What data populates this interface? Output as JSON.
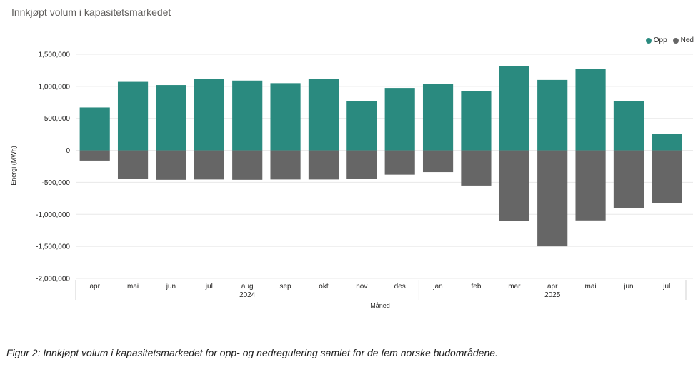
{
  "title": "Innkjøpt volum i kapasitetsmarkedet",
  "caption": "Figur 2: Innkjøpt volum i kapasitetsmarkedet for opp- og nedregulering samlet for de fem norske budområdene.",
  "colors": {
    "opp": "#2a8a7f",
    "ned": "#666666",
    "grid": "#e8e8e8"
  },
  "chart_data": {
    "type": "bar",
    "title": "Innkjøpt volum i kapasitetsmarkedet",
    "xlabel": "Måned",
    "ylabel": "Energi (MWh)",
    "ylim": [
      -2000000,
      1500000
    ],
    "yticks": [
      1500000,
      1000000,
      500000,
      0,
      -500000,
      -1000000,
      -1500000,
      -2000000
    ],
    "ytick_labels": [
      "1,500,000",
      "1,000,000",
      "500,000",
      "0",
      "-500,000",
      "-1,000,000",
      "-1,500,000",
      "-2,000,000"
    ],
    "categories": [
      "apr",
      "mai",
      "jun",
      "jul",
      "aug",
      "sep",
      "okt",
      "nov",
      "des",
      "jan",
      "feb",
      "mar",
      "apr",
      "mai",
      "jun",
      "jul"
    ],
    "year_groups": [
      {
        "label": "2024",
        "start": 0,
        "end": 8
      },
      {
        "label": "2025",
        "start": 9,
        "end": 15
      }
    ],
    "legend_position": "top-right",
    "grid": true,
    "series": [
      {
        "name": "Opp",
        "values": [
          670000,
          1070000,
          1020000,
          1120000,
          1090000,
          1050000,
          1115000,
          765000,
          975000,
          1040000,
          925000,
          1320000,
          1100000,
          1275000,
          765000,
          255000
        ]
      },
      {
        "name": "Ned",
        "values": [
          -160000,
          -440000,
          -460000,
          -455000,
          -460000,
          -455000,
          -455000,
          -450000,
          -380000,
          -340000,
          -550000,
          -1100000,
          -1500000,
          -1095000,
          -905000,
          -825000
        ]
      }
    ]
  }
}
